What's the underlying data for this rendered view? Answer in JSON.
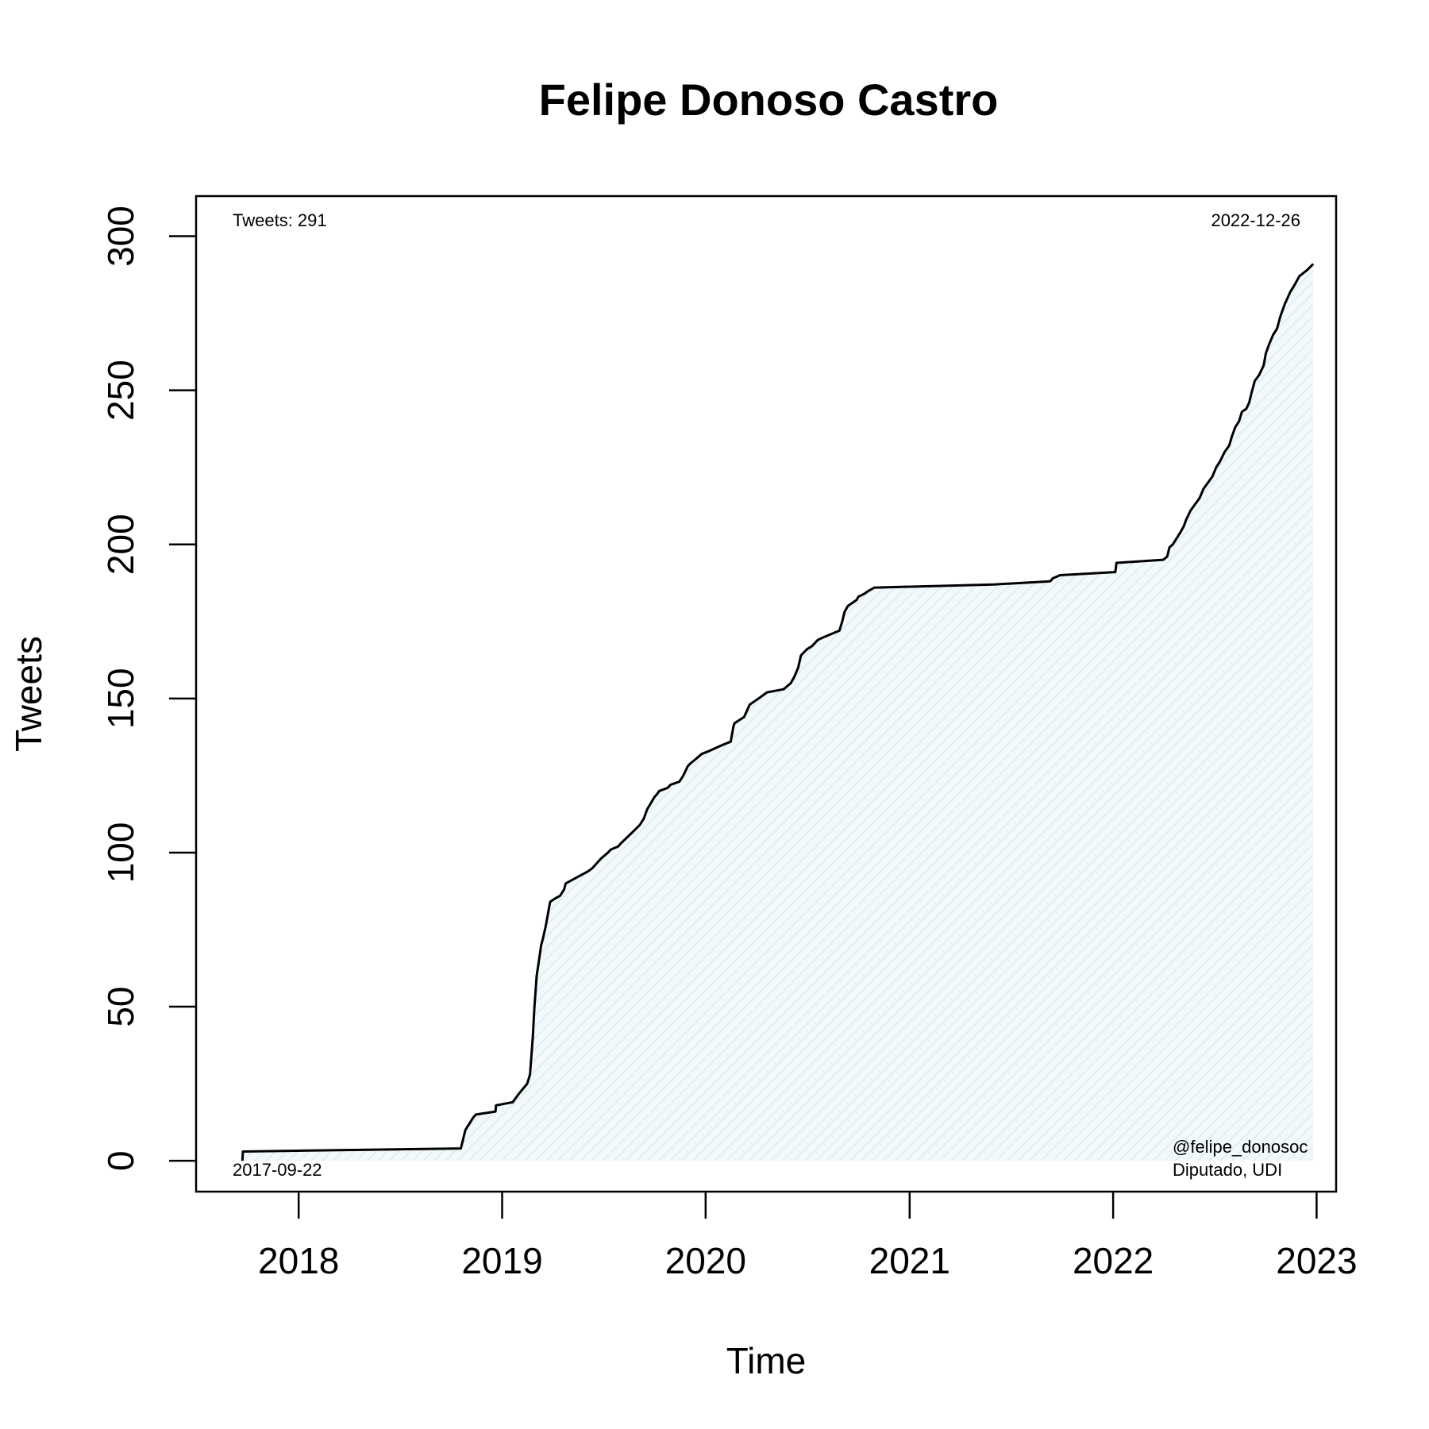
{
  "chart_data": {
    "type": "area",
    "title": "Felipe Donoso Castro",
    "xlabel": "Time",
    "ylabel": "Tweets",
    "xlim": [
      "2017-07-01",
      "2023-02-05"
    ],
    "ylim": [
      -10,
      313
    ],
    "x_ticks": [
      "2018",
      "2019",
      "2020",
      "2021",
      "2022",
      "2023"
    ],
    "y_ticks": [
      0,
      50,
      100,
      150,
      200,
      250,
      300
    ],
    "grid": false,
    "fill_color": "#e6f2f5",
    "line_color": "#000000",
    "annotations": {
      "total": "Tweets: 291",
      "start_date": "2017-09-22",
      "end_date": "2022-12-26",
      "handle": "@felipe_donosoc",
      "role": "Diputado, UDI"
    },
    "series": [
      {
        "x": [
          "2017-09-22",
          "2017-09-23",
          "2018-10-19",
          "2018-10-27",
          "2018-11-03",
          "2018-11-10",
          "2018-11-15",
          "2018-12-20",
          "2018-12-21",
          "2019-01-20",
          "2019-02-01",
          "2019-02-15",
          "2019-02-20",
          "2019-02-25",
          "2019-02-28",
          "2019-03-04",
          "2019-03-08",
          "2019-03-12",
          "2019-03-15",
          "2019-03-20",
          "2019-03-28",
          "2019-04-05",
          "2019-04-15",
          "2019-04-22",
          "2019-04-25",
          "2019-06-05",
          "2019-06-12",
          "2019-06-22",
          "2019-06-27",
          "2019-07-10",
          "2019-07-15",
          "2019-07-28",
          "2019-08-02",
          "2019-08-25",
          "2019-09-05",
          "2019-09-12",
          "2019-09-18",
          "2019-09-28",
          "2019-10-01",
          "2019-10-06",
          "2019-10-10",
          "2019-10-25",
          "2019-10-30",
          "2019-11-15",
          "2019-11-22",
          "2019-11-30",
          "2019-12-05",
          "2019-12-12",
          "2019-12-25",
          "2020-01-08",
          "2020-01-20",
          "2020-02-01",
          "2020-02-15",
          "2020-02-20",
          "2020-02-22",
          "2020-03-10",
          "2020-03-20",
          "2020-03-28",
          "2020-04-05",
          "2020-04-20",
          "2020-05-20",
          "2020-06-02",
          "2020-06-08",
          "2020-06-15",
          "2020-06-20",
          "2020-07-01",
          "2020-07-10",
          "2020-07-20",
          "2020-08-01",
          "2020-08-28",
          "2020-09-02",
          "2020-09-06",
          "2020-09-12",
          "2020-09-28",
          "2020-10-01",
          "2020-10-12",
          "2020-10-20",
          "2020-10-30",
          "2020-11-03",
          "2021-06-01",
          "2021-09-10",
          "2021-09-15",
          "2021-09-28",
          "2022-01-05",
          "2022-01-07",
          "2022-04-01",
          "2022-04-08",
          "2022-04-12",
          "2022-04-18",
          "2022-04-25",
          "2022-05-02",
          "2022-05-08",
          "2022-05-12",
          "2022-05-20",
          "2022-05-28",
          "2022-06-05",
          "2022-06-12",
          "2022-06-20",
          "2022-06-28",
          "2022-07-05",
          "2022-07-12",
          "2022-07-20",
          "2022-07-28",
          "2022-08-02",
          "2022-08-08",
          "2022-08-15",
          "2022-08-20",
          "2022-08-28",
          "2022-09-02",
          "2022-09-06",
          "2022-09-12",
          "2022-09-20",
          "2022-09-28",
          "2022-10-02",
          "2022-10-08",
          "2022-10-15",
          "2022-10-22",
          "2022-10-28",
          "2022-11-05",
          "2022-11-15",
          "2022-11-22",
          "2022-12-01",
          "2022-12-15",
          "2022-12-26"
        ],
        "y": [
          0,
          3,
          4,
          10,
          12,
          14,
          15,
          16,
          18,
          19,
          22,
          25,
          28,
          40,
          50,
          60,
          65,
          70,
          72,
          76,
          84,
          85,
          86,
          88,
          90,
          94,
          95,
          97,
          98,
          100,
          101,
          102,
          103,
          107,
          109,
          111,
          114,
          117,
          118,
          119,
          120,
          121,
          122,
          123,
          125,
          128,
          129,
          130,
          132,
          133,
          134,
          135,
          136,
          141,
          142,
          144,
          148,
          149,
          150,
          152,
          153,
          155,
          157,
          160,
          164,
          166,
          167,
          169,
          170,
          172,
          175,
          178,
          180,
          182,
          183,
          184,
          185,
          186,
          186,
          187,
          188,
          189,
          190,
          191,
          194,
          195,
          196,
          199,
          200,
          202,
          204,
          206,
          208,
          211,
          213,
          215,
          218,
          220,
          222,
          225,
          227,
          230,
          232,
          235,
          238,
          240,
          243,
          244,
          246,
          249,
          253,
          255,
          258,
          262,
          265,
          268,
          270,
          274,
          278,
          282,
          284,
          287,
          289,
          291
        ]
      }
    ]
  }
}
